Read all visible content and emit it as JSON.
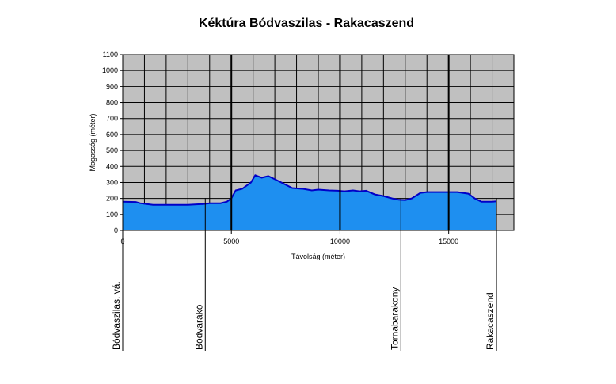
{
  "chart_data": {
    "type": "area",
    "title": "Kéktúra Bódvaszilas - Rakacaszend",
    "xlabel": "Távolság (méter)",
    "ylabel": "Magasság (méter)",
    "xlim": [
      0,
      18000
    ],
    "ylim": [
      0,
      1100
    ],
    "x_ticks": [
      0,
      5000,
      10000,
      15000
    ],
    "y_ticks": [
      0,
      100,
      200,
      300,
      400,
      500,
      600,
      700,
      800,
      900,
      1000,
      1100
    ],
    "x_major_grid": [
      5000,
      10000,
      15000
    ],
    "grid": true,
    "colors": {
      "plot_bg": "#c0c0c0",
      "fill": "#1e8ff0",
      "line": "#0000c8",
      "grid": "#000000"
    },
    "series": [
      {
        "x": [
          0,
          600,
          800,
          1100,
          1400,
          2000,
          3000,
          3700,
          4000,
          4500,
          4800,
          5000,
          5200,
          5500,
          5900,
          6100,
          6400,
          6700,
          7000,
          7300,
          7800,
          8300,
          8700,
          9000,
          9500,
          9900,
          10200,
          10600,
          10900,
          11200,
          11600,
          12000,
          12400,
          12700,
          13000,
          13300,
          13700,
          14000,
          14500,
          15000,
          15400,
          15900,
          16200,
          16500,
          17000,
          17200
        ],
        "y": [
          180,
          178,
          170,
          165,
          160,
          160,
          160,
          165,
          170,
          170,
          180,
          200,
          250,
          260,
          300,
          345,
          330,
          340,
          320,
          300,
          265,
          260,
          250,
          255,
          250,
          248,
          245,
          250,
          245,
          248,
          225,
          215,
          200,
          192,
          190,
          200,
          235,
          240,
          240,
          240,
          240,
          230,
          200,
          180,
          180,
          182
        ]
      }
    ],
    "stations": [
      {
        "name": "Bódvaszilas, vá.",
        "x": 0
      },
      {
        "name": "Bódvarákó",
        "x": 3800
      },
      {
        "name": "Tornabarakony",
        "x": 12800
      },
      {
        "name": "Rakacaszend",
        "x": 17200
      }
    ]
  }
}
